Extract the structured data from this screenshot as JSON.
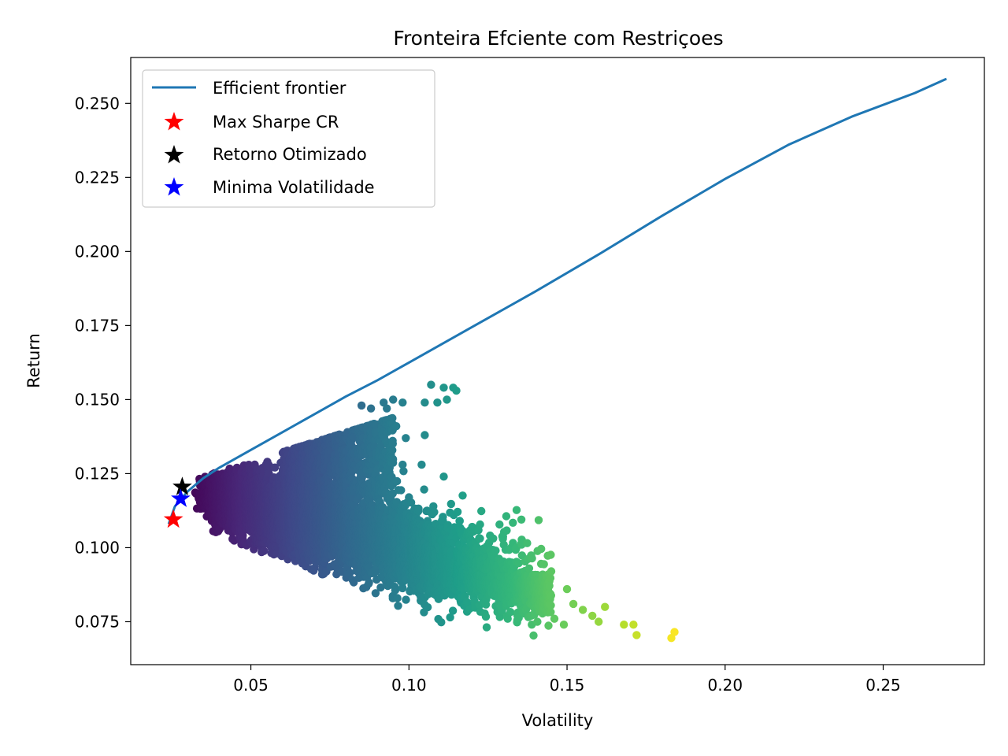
{
  "chart_data": {
    "type": "scatter",
    "title": "Fronteira Efciente com Restriçoes",
    "xlabel": "Volatility",
    "ylabel": "Return",
    "xlim": [
      0.012,
      0.282
    ],
    "ylim": [
      0.0605,
      0.2655
    ],
    "x_ticks": [
      0.05,
      0.1,
      0.15,
      0.2,
      0.25
    ],
    "x_tick_labels": [
      "0.05",
      "0.10",
      "0.15",
      "0.20",
      "0.25"
    ],
    "y_ticks": [
      0.075,
      0.1,
      0.125,
      0.15,
      0.175,
      0.2,
      0.225,
      0.25
    ],
    "y_tick_labels": [
      "0.075",
      "0.100",
      "0.125",
      "0.150",
      "0.175",
      "0.200",
      "0.225",
      "0.250"
    ],
    "grid": false,
    "legend_position": "top-left",
    "colormap": "viridis",
    "series": [
      {
        "name": "Efficient frontier",
        "kind": "line",
        "color": "#1f77b4",
        "x": [
          0.024,
          0.026,
          0.03,
          0.035,
          0.04,
          0.05,
          0.06,
          0.07,
          0.08,
          0.09,
          0.1,
          0.12,
          0.14,
          0.16,
          0.18,
          0.2,
          0.22,
          0.24,
          0.26,
          0.27
        ],
        "y": [
          0.108,
          0.114,
          0.119,
          0.1235,
          0.127,
          0.133,
          0.139,
          0.145,
          0.151,
          0.1565,
          0.1625,
          0.1745,
          0.1865,
          0.199,
          0.212,
          0.2245,
          0.236,
          0.2455,
          0.2535,
          0.2583
        ]
      },
      {
        "name": "Max Sharpe CR",
        "kind": "star",
        "color": "#ff0000",
        "x": [
          0.0255
        ],
        "y": [
          0.1095
        ]
      },
      {
        "name": "Retorno Otimizado",
        "kind": "star",
        "color": "#000000",
        "x": [
          0.0283
        ],
        "y": [
          0.1205
        ]
      },
      {
        "name": "Minima Volatilidade",
        "kind": "star",
        "color": "#0000ff",
        "x": [
          0.0278
        ],
        "y": [
          0.1165
        ]
      }
    ],
    "scatter_cloud": {
      "description_points": "random portfolios colored by volatility (viridis)",
      "outliers": [
        [
          0.107,
          0.155
        ],
        [
          0.111,
          0.154
        ],
        [
          0.114,
          0.154
        ],
        [
          0.109,
          0.149
        ],
        [
          0.105,
          0.149
        ],
        [
          0.098,
          0.149
        ],
        [
          0.095,
          0.15
        ],
        [
          0.093,
          0.147
        ],
        [
          0.092,
          0.149
        ],
        [
          0.088,
          0.147
        ],
        [
          0.085,
          0.148
        ],
        [
          0.105,
          0.138
        ],
        [
          0.099,
          0.137
        ],
        [
          0.096,
          0.141
        ],
        [
          0.093,
          0.13
        ],
        [
          0.098,
          0.128
        ],
        [
          0.104,
          0.128
        ],
        [
          0.111,
          0.124
        ],
        [
          0.112,
          0.15
        ],
        [
          0.115,
          0.153
        ],
        [
          0.1,
          0.117
        ],
        [
          0.108,
          0.112
        ],
        [
          0.116,
          0.109
        ],
        [
          0.12,
          0.107
        ],
        [
          0.13,
          0.101
        ],
        [
          0.134,
          0.1
        ],
        [
          0.12,
          0.098
        ],
        [
          0.138,
          0.093
        ],
        [
          0.145,
          0.092
        ],
        [
          0.143,
          0.088
        ],
        [
          0.15,
          0.086
        ],
        [
          0.152,
          0.081
        ],
        [
          0.155,
          0.079
        ],
        [
          0.158,
          0.077
        ],
        [
          0.162,
          0.08
        ],
        [
          0.16,
          0.075
        ],
        [
          0.168,
          0.074
        ],
        [
          0.171,
          0.074
        ],
        [
          0.172,
          0.0705
        ],
        [
          0.184,
          0.0715
        ],
        [
          0.183,
          0.0695
        ],
        [
          0.149,
          0.074
        ],
        [
          0.146,
          0.076
        ],
        [
          0.142,
          0.085
        ],
        [
          0.14,
          0.09
        ],
        [
          0.135,
          0.087
        ],
        [
          0.131,
          0.082
        ],
        [
          0.137,
          0.079
        ],
        [
          0.127,
          0.089
        ],
        [
          0.125,
          0.095
        ]
      ]
    }
  }
}
